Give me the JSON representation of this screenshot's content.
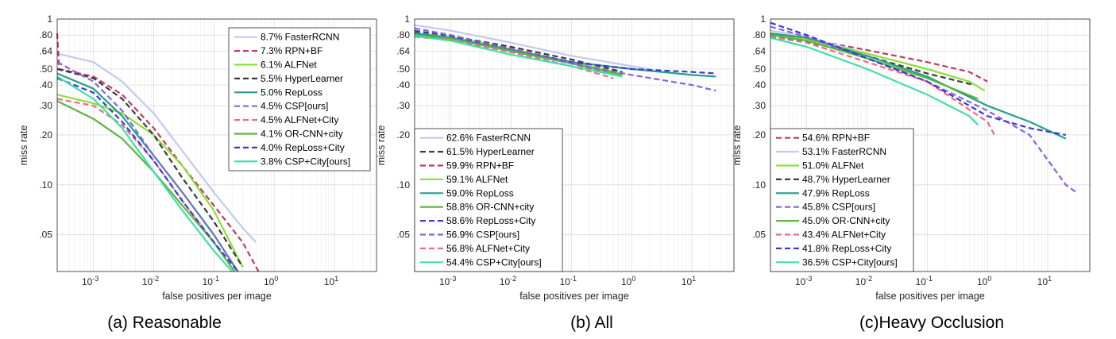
{
  "colors": {
    "FasterRCNN": "#c4c9f0",
    "RPN+BF": "#c0396a",
    "ALFNet": "#8ee03a",
    "HyperLearner": "#3a3a3a",
    "RepLoss": "#25a08a",
    "CSP": "#8a5fe0",
    "ALFNet+City": "#f06a86",
    "OR-CNN+city": "#5bb53a",
    "RepLoss+City": "#3b3bd0",
    "CSP+City": "#3ee0a6"
  },
  "chart_data": [
    {
      "type": "line",
      "caption": "(a) Reasonable",
      "xlabel": "false positives per image",
      "ylabel": "miss rate",
      "xscale": "log",
      "yscale": "log",
      "xlim": [
        0.00025,
        50
      ],
      "ylim": [
        0.03,
        1
      ],
      "xticks": [
        "10^-3",
        "10^-2",
        "10^-1",
        "10^0",
        "10^1"
      ],
      "yticks": [
        "1",
        ".80",
        ".64",
        ".50",
        ".40",
        ".30",
        ".20",
        ".10",
        ".05"
      ],
      "grid": true,
      "legend_position": "top-right",
      "series": [
        {
          "name": "8.7% FasterRCNN",
          "key": "FasterRCNN",
          "dash": false,
          "x": [
            0.00025,
            0.001,
            0.003,
            0.01,
            0.03,
            0.1,
            0.3,
            0.5
          ],
          "y": [
            0.62,
            0.55,
            0.42,
            0.27,
            0.16,
            0.09,
            0.055,
            0.045
          ]
        },
        {
          "name": "7.3% RPN+BF",
          "key": "RPN+BF",
          "dash": true,
          "x": [
            0.00025,
            0.00027,
            0.001,
            0.003,
            0.01,
            0.03,
            0.1,
            0.3,
            0.55
          ],
          "y": [
            0.82,
            0.5,
            0.45,
            0.35,
            0.22,
            0.13,
            0.075,
            0.045,
            0.03
          ]
        },
        {
          "name": "6.1% ALFNet",
          "key": "ALFNet",
          "dash": false,
          "x": [
            0.00025,
            0.001,
            0.003,
            0.01,
            0.03,
            0.1,
            0.3
          ],
          "y": [
            0.35,
            0.31,
            0.27,
            0.2,
            0.13,
            0.07,
            0.032
          ]
        },
        {
          "name": "5.5% HyperLearner",
          "key": "HyperLearner",
          "dash": true,
          "x": [
            0.00025,
            0.001,
            0.003,
            0.01,
            0.03,
            0.1,
            0.3
          ],
          "y": [
            0.5,
            0.44,
            0.33,
            0.2,
            0.11,
            0.06,
            0.032
          ]
        },
        {
          "name": "5.0% RepLoss",
          "key": "RepLoss",
          "dash": false,
          "x": [
            0.00025,
            0.001,
            0.003,
            0.01,
            0.03,
            0.1,
            0.25
          ],
          "y": [
            0.47,
            0.38,
            0.26,
            0.15,
            0.09,
            0.05,
            0.03
          ]
        },
        {
          "name": "4.5% CSP[ours]",
          "key": "CSP",
          "dash": true,
          "x": [
            0.00025,
            0.001,
            0.003,
            0.01,
            0.03,
            0.1,
            0.25
          ],
          "y": [
            0.55,
            0.42,
            0.28,
            0.15,
            0.09,
            0.05,
            0.03
          ]
        },
        {
          "name": "4.5% ALFNet+City",
          "key": "ALFNet+City",
          "dash": true,
          "x": [
            0.00025,
            0.001,
            0.003,
            0.01,
            0.03,
            0.1,
            0.22
          ],
          "y": [
            0.33,
            0.3,
            0.23,
            0.14,
            0.08,
            0.045,
            0.03
          ]
        },
        {
          "name": "4.1% OR-CNN+city",
          "key": "OR-CNN+city",
          "dash": false,
          "x": [
            0.00025,
            0.001,
            0.003,
            0.01,
            0.03,
            0.1,
            0.22
          ],
          "y": [
            0.32,
            0.25,
            0.19,
            0.12,
            0.075,
            0.045,
            0.03
          ]
        },
        {
          "name": "4.0% RepLoss+City",
          "key": "RepLoss+City",
          "dash": true,
          "x": [
            0.00025,
            0.001,
            0.003,
            0.01,
            0.03,
            0.1,
            0.25
          ],
          "y": [
            0.44,
            0.36,
            0.24,
            0.14,
            0.08,
            0.045,
            0.03
          ]
        },
        {
          "name": "3.8% CSP+City[ours]",
          "key": "CSP+City",
          "dash": false,
          "x": [
            0.00025,
            0.001,
            0.003,
            0.01,
            0.03,
            0.1,
            0.2
          ],
          "y": [
            0.45,
            0.33,
            0.22,
            0.12,
            0.07,
            0.04,
            0.03
          ]
        }
      ]
    },
    {
      "type": "line",
      "caption": "(b) All",
      "xlabel": "false positives per image",
      "ylabel": "miss rate",
      "xscale": "log",
      "yscale": "log",
      "xlim": [
        0.00025,
        50
      ],
      "ylim": [
        0.03,
        1
      ],
      "xticks": [
        "10^-3",
        "10^-2",
        "10^-1",
        "10^0",
        "10^1"
      ],
      "yticks": [
        "1",
        ".80",
        ".64",
        ".50",
        ".40",
        ".30",
        ".20",
        ".10",
        ".05"
      ],
      "grid": true,
      "legend_position": "bottom-left",
      "series": [
        {
          "name": "62.6% FasterRCNN",
          "key": "FasterRCNN",
          "dash": false,
          "x": [
            0.00025,
            0.001,
            0.01,
            0.1,
            1,
            2
          ],
          "y": [
            0.92,
            0.85,
            0.72,
            0.6,
            0.52,
            0.5
          ]
        },
        {
          "name": "61.5% HyperLearner",
          "key": "HyperLearner",
          "dash": true,
          "x": [
            0.00025,
            0.001,
            0.01,
            0.1,
            0.7
          ],
          "y": [
            0.83,
            0.79,
            0.68,
            0.57,
            0.48
          ]
        },
        {
          "name": "59.9% RPN+BF",
          "key": "RPN+BF",
          "dash": true,
          "x": [
            0.00025,
            0.001,
            0.01,
            0.1,
            0.5
          ],
          "y": [
            0.8,
            0.76,
            0.65,
            0.54,
            0.46
          ]
        },
        {
          "name": "59.1% ALFNet",
          "key": "ALFNet",
          "dash": false,
          "x": [
            0.00025,
            0.001,
            0.01,
            0.1,
            0.7
          ],
          "y": [
            0.82,
            0.78,
            0.66,
            0.55,
            0.47
          ]
        },
        {
          "name": "59.0% RepLoss",
          "key": "RepLoss",
          "dash": false,
          "x": [
            0.00025,
            0.001,
            0.01,
            0.1,
            1,
            10,
            25
          ],
          "y": [
            0.82,
            0.77,
            0.65,
            0.55,
            0.5,
            0.46,
            0.45
          ]
        },
        {
          "name": "58.8% OR-CNN+city",
          "key": "OR-CNN+city",
          "dash": false,
          "x": [
            0.00025,
            0.001,
            0.01,
            0.1,
            0.7
          ],
          "y": [
            0.8,
            0.76,
            0.64,
            0.54,
            0.46
          ]
        },
        {
          "name": "58.6% RepLoss+City",
          "key": "RepLoss+City",
          "dash": true,
          "x": [
            0.00025,
            0.001,
            0.01,
            0.1,
            1,
            10,
            25
          ],
          "y": [
            0.85,
            0.79,
            0.66,
            0.55,
            0.5,
            0.48,
            0.47
          ]
        },
        {
          "name": "56.9% CSP[ours]",
          "key": "CSP",
          "dash": true,
          "x": [
            0.00025,
            0.001,
            0.01,
            0.1,
            1,
            10,
            25
          ],
          "y": [
            0.88,
            0.8,
            0.66,
            0.54,
            0.46,
            0.4,
            0.37
          ]
        },
        {
          "name": "56.8% ALFNet+City",
          "key": "ALFNet+City",
          "dash": true,
          "x": [
            0.00025,
            0.001,
            0.01,
            0.1,
            0.5
          ],
          "y": [
            0.78,
            0.75,
            0.63,
            0.52,
            0.44
          ]
        },
        {
          "name": "54.4% CSP+City[ours]",
          "key": "CSP+City",
          "dash": false,
          "x": [
            0.00025,
            0.001,
            0.01,
            0.1,
            0.7
          ],
          "y": [
            0.79,
            0.74,
            0.61,
            0.52,
            0.45
          ]
        }
      ]
    },
    {
      "type": "line",
      "caption": "(c)Heavy Occlusion",
      "xlabel": "false positives per image",
      "ylabel": "miss rate",
      "xscale": "log",
      "yscale": "log",
      "xlim": [
        0.00025,
        50
      ],
      "ylim": [
        0.03,
        1
      ],
      "xticks": [
        "10^-3",
        "10^-2",
        "10^-1",
        "10^0",
        "10^1"
      ],
      "yticks": [
        "1",
        ".80",
        ".64",
        ".50",
        ".40",
        ".30",
        ".20",
        ".10",
        ".05"
      ],
      "grid": true,
      "legend_position": "bottom-left",
      "series": [
        {
          "name": "54.6% RPN+BF",
          "key": "RPN+BF",
          "dash": true,
          "x": [
            0.00025,
            0.001,
            0.01,
            0.1,
            0.5,
            1
          ],
          "y": [
            0.8,
            0.76,
            0.65,
            0.55,
            0.48,
            0.42
          ]
        },
        {
          "name": "53.1% FasterRCNN",
          "key": "FasterRCNN",
          "dash": false,
          "x": [
            0.00025,
            0.001,
            0.01,
            0.1,
            0.5
          ],
          "y": [
            0.85,
            0.78,
            0.62,
            0.5,
            0.42
          ]
        },
        {
          "name": "51.0% ALFNet",
          "key": "ALFNet",
          "dash": false,
          "x": [
            0.00025,
            0.001,
            0.01,
            0.1,
            0.5,
            0.9
          ],
          "y": [
            0.8,
            0.75,
            0.62,
            0.5,
            0.42,
            0.37
          ]
        },
        {
          "name": "48.7% HyperLearner",
          "key": "HyperLearner",
          "dash": true,
          "x": [
            0.00025,
            0.001,
            0.01,
            0.1,
            0.6
          ],
          "y": [
            0.78,
            0.73,
            0.6,
            0.47,
            0.4
          ]
        },
        {
          "name": "47.9% RepLoss",
          "key": "RepLoss",
          "dash": false,
          "x": [
            0.00025,
            0.001,
            0.01,
            0.1,
            1,
            5,
            20
          ],
          "y": [
            0.82,
            0.77,
            0.6,
            0.45,
            0.3,
            0.24,
            0.19
          ]
        },
        {
          "name": "45.8% CSP[ours]",
          "key": "CSP",
          "dash": true,
          "x": [
            0.00025,
            0.001,
            0.01,
            0.1,
            1,
            5,
            20,
            30
          ],
          "y": [
            0.9,
            0.78,
            0.58,
            0.42,
            0.28,
            0.2,
            0.1,
            0.09
          ]
        },
        {
          "name": "45.0% OR-CNN+city",
          "key": "OR-CNN+city",
          "dash": false,
          "x": [
            0.00025,
            0.001,
            0.01,
            0.1,
            0.7
          ],
          "y": [
            0.8,
            0.74,
            0.58,
            0.44,
            0.33
          ]
        },
        {
          "name": "43.4% ALFNet+City",
          "key": "ALFNet+City",
          "dash": true,
          "x": [
            0.00025,
            0.001,
            0.01,
            0.1,
            1,
            1.3
          ],
          "y": [
            0.78,
            0.72,
            0.55,
            0.42,
            0.24,
            0.2
          ]
        },
        {
          "name": "41.8% RepLoss+City",
          "key": "RepLoss+City",
          "dash": true,
          "x": [
            0.00025,
            0.001,
            0.01,
            0.1,
            1,
            5,
            20
          ],
          "y": [
            0.95,
            0.8,
            0.58,
            0.42,
            0.26,
            0.22,
            0.2
          ]
        },
        {
          "name": "36.5% CSP+City[ours]",
          "key": "CSP+City",
          "dash": false,
          "x": [
            0.00025,
            0.001,
            0.01,
            0.1,
            0.5,
            0.7
          ],
          "y": [
            0.77,
            0.68,
            0.5,
            0.35,
            0.26,
            0.23
          ]
        }
      ]
    }
  ]
}
